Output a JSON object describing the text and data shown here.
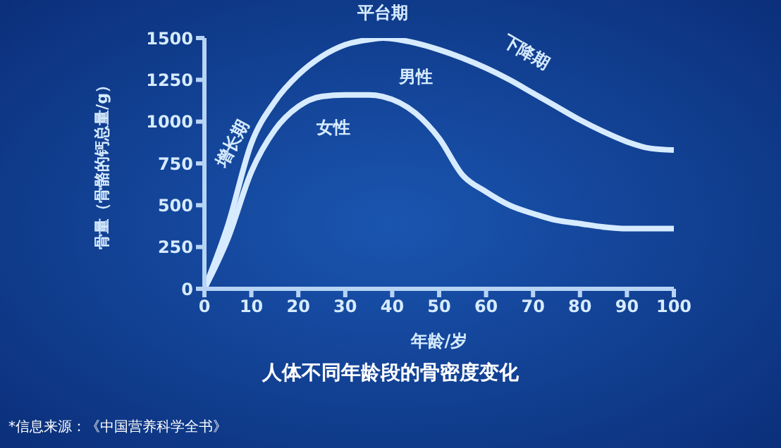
{
  "chart_data": {
    "type": "line",
    "title": "人体不同年龄段的骨密度变化",
    "xlabel": "年龄/岁",
    "ylabel": "骨量（骨骼的钙总量/g）",
    "x": [
      0,
      5,
      10,
      15,
      20,
      25,
      30,
      35,
      38,
      45,
      50,
      55,
      60,
      65,
      70,
      75,
      80,
      85,
      90,
      95,
      100
    ],
    "series": [
      {
        "name": "男性",
        "color": "#d6ebff",
        "values": [
          0,
          380,
          870,
          1120,
          1280,
          1390,
          1460,
          1490,
          1500,
          1470,
          1430,
          1380,
          1320,
          1250,
          1170,
          1090,
          1010,
          940,
          880,
          840,
          830
        ]
      },
      {
        "name": "女性",
        "color": "#d6ebff",
        "values": [
          0,
          300,
          700,
          950,
          1090,
          1150,
          1160,
          1160,
          1150,
          1050,
          900,
          680,
          580,
          500,
          450,
          410,
          390,
          370,
          360,
          360,
          360
        ]
      }
    ],
    "xlim": [
      0,
      100
    ],
    "xticks": [
      0,
      10,
      20,
      30,
      40,
      50,
      60,
      70,
      80,
      90,
      100
    ],
    "ylim": [
      0,
      1500
    ],
    "yticks": [
      0,
      250,
      500,
      750,
      1000,
      1250,
      1500
    ],
    "grid": false,
    "legend": false,
    "marker": "none",
    "line_style": "solid",
    "annotations": [
      {
        "text": "平台期",
        "x": 38,
        "y": 1500
      },
      {
        "text": "下降期",
        "x": 68,
        "y": 1250
      },
      {
        "text": "增长期",
        "x": 10,
        "y": 870
      },
      "*信息来源：《中国营养科学全书》"
    ]
  }
}
